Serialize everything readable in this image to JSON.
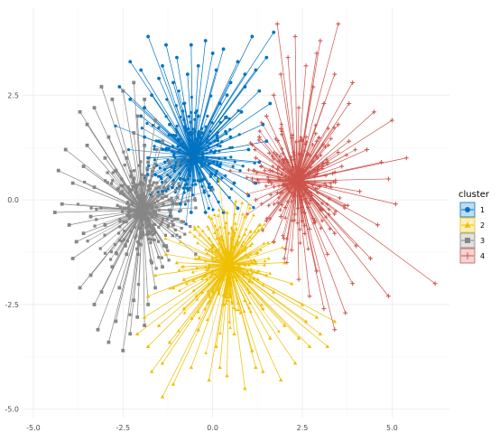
{
  "chart_data": {
    "type": "scatter",
    "title": "",
    "xlabel": "",
    "ylabel": "",
    "xlim": [
      -5.3,
      6.6
    ],
    "ylim": [
      -5.2,
      4.6
    ],
    "x_ticks": [
      -5.0,
      -2.5,
      0.0,
      2.5,
      5.0
    ],
    "x_tick_labels": [
      "-5.0",
      "-2.5",
      "0.0",
      "2.5",
      "5.0"
    ],
    "y_ticks": [
      -5.0,
      -2.5,
      0.0,
      2.5
    ],
    "y_tick_labels": [
      "-5.0",
      "-2.5",
      "0.0",
      "2.5"
    ],
    "grid": true,
    "legend": {
      "title": "cluster",
      "position": "right"
    },
    "series": [
      {
        "name": "1",
        "color": "#0073C2",
        "marker": "circle",
        "centroid": [
          -0.55,
          1.05
        ],
        "points": [
          [
            -1.8,
            3.9
          ],
          [
            -1.3,
            3.7
          ],
          [
            -2.3,
            3.3
          ],
          [
            -2.0,
            3.1
          ],
          [
            -1.5,
            2.9
          ],
          [
            -1.0,
            3.4
          ],
          [
            -0.6,
            3.7
          ],
          [
            -0.2,
            3.8
          ],
          [
            0.3,
            3.6
          ],
          [
            0.7,
            3.3
          ],
          [
            1.1,
            3.9
          ],
          [
            1.7,
            4.0
          ],
          [
            1.5,
            3.4
          ],
          [
            0.9,
            3.0
          ],
          [
            1.3,
            2.6
          ],
          [
            1.6,
            2.3
          ],
          [
            1.4,
            1.8
          ],
          [
            1.5,
            1.4
          ],
          [
            1.3,
            0.9
          ],
          [
            1.2,
            0.4
          ],
          [
            1.0,
            0.1
          ],
          [
            0.7,
            -0.2
          ],
          [
            0.3,
            -0.3
          ],
          [
            -0.2,
            -0.3
          ],
          [
            -0.6,
            -0.3
          ],
          [
            -0.9,
            -0.1
          ],
          [
            -1.4,
            0.2
          ],
          [
            -1.6,
            0.6
          ],
          [
            -1.8,
            1.0
          ],
          [
            -1.9,
            1.5
          ],
          [
            -2.0,
            2.0
          ],
          [
            -2.3,
            2.4
          ],
          [
            -2.6,
            2.7
          ],
          [
            -1.7,
            2.5
          ],
          [
            -1.1,
            2.8
          ],
          [
            -0.4,
            3.2
          ],
          [
            0.1,
            3.1
          ],
          [
            0.5,
            2.8
          ],
          [
            -0.8,
            2.3
          ],
          [
            0.2,
            2.3
          ],
          [
            0.8,
            2.1
          ],
          [
            -1.2,
            1.8
          ],
          [
            -0.3,
            1.6
          ],
          [
            0.5,
            1.5
          ],
          [
            1.0,
            1.2
          ],
          [
            -1.3,
            1.2
          ],
          [
            -0.6,
            0.9
          ],
          [
            0.2,
            0.8
          ],
          [
            0.6,
            0.4
          ],
          [
            -0.9,
            0.5
          ],
          [
            -0.1,
            0.3
          ],
          [
            -0.4,
            2.0
          ],
          [
            0.4,
            2.5
          ],
          [
            -1.5,
            1.4
          ],
          [
            0.9,
            2.7
          ],
          [
            -1.9,
            2.2
          ],
          [
            1.2,
            3.1
          ],
          [
            -0.7,
            3.0
          ],
          [
            -1.4,
            3.2
          ],
          [
            0.0,
            3.5
          ]
        ]
      },
      {
        "name": "2",
        "color": "#EFC000",
        "marker": "triangle",
        "centroid": [
          0.45,
          -1.55
        ],
        "points": [
          [
            -1.7,
            -4.1
          ],
          [
            -1.4,
            -4.7
          ],
          [
            -1.1,
            -4.4
          ],
          [
            -0.6,
            -4.0
          ],
          [
            -0.1,
            -4.3
          ],
          [
            0.4,
            -4.2
          ],
          [
            0.9,
            -4.5
          ],
          [
            1.4,
            -4.1
          ],
          [
            1.9,
            -4.3
          ],
          [
            2.3,
            -3.9
          ],
          [
            2.7,
            -3.5
          ],
          [
            3.0,
            -3.2
          ],
          [
            3.2,
            -3.5
          ],
          [
            2.9,
            -2.8
          ],
          [
            3.4,
            -2.9
          ],
          [
            2.5,
            -2.5
          ],
          [
            2.2,
            -2.0
          ],
          [
            2.0,
            -1.5
          ],
          [
            1.7,
            -1.0
          ],
          [
            1.3,
            -0.6
          ],
          [
            0.9,
            -0.4
          ],
          [
            0.4,
            -0.3
          ],
          [
            -0.1,
            -0.4
          ],
          [
            -0.5,
            -0.7
          ],
          [
            -0.9,
            -1.0
          ],
          [
            -1.3,
            -1.3
          ],
          [
            -1.6,
            -1.8
          ],
          [
            -1.8,
            -2.3
          ],
          [
            -1.9,
            -2.8
          ],
          [
            -2.1,
            -3.2
          ],
          [
            -1.8,
            -3.5
          ],
          [
            -1.5,
            -3.0
          ],
          [
            -1.2,
            -3.4
          ],
          [
            -0.8,
            -2.6
          ],
          [
            -0.4,
            -3.1
          ],
          [
            0.1,
            -3.5
          ],
          [
            0.6,
            -3.2
          ],
          [
            1.1,
            -3.6
          ],
          [
            1.6,
            -3.3
          ],
          [
            2.0,
            -3.0
          ],
          [
            1.4,
            -2.6
          ],
          [
            0.9,
            -2.4
          ],
          [
            0.3,
            -2.5
          ],
          [
            -0.3,
            -2.2
          ],
          [
            -0.8,
            -1.9
          ],
          [
            -1.1,
            -2.1
          ],
          [
            1.7,
            -2.2
          ],
          [
            0.7,
            -1.0
          ],
          [
            0.1,
            -1.2
          ],
          [
            -0.4,
            -1.4
          ],
          [
            1.1,
            -1.5
          ],
          [
            1.5,
            -1.8
          ],
          [
            -1.0,
            -1.5
          ],
          [
            0.5,
            -2.0
          ],
          [
            -0.2,
            -1.8
          ],
          [
            2.4,
            -3.3
          ],
          [
            -1.4,
            -3.9
          ],
          [
            0.2,
            -4.0
          ],
          [
            1.2,
            -4.0
          ],
          [
            2.6,
            -2.9
          ]
        ]
      },
      {
        "name": "3",
        "color": "#868686",
        "marker": "square",
        "centroid": [
          -1.95,
          -0.25
        ],
        "points": [
          [
            -4.2,
            -0.1
          ],
          [
            -4.0,
            -0.6
          ],
          [
            -3.9,
            0.4
          ],
          [
            -3.9,
            -1.4
          ],
          [
            -3.8,
            -1.0
          ],
          [
            -3.6,
            0.8
          ],
          [
            -3.5,
            1.3
          ],
          [
            -3.4,
            -1.8
          ],
          [
            -3.3,
            -2.5
          ],
          [
            -3.2,
            -3.1
          ],
          [
            -3.1,
            -2.2
          ],
          [
            -2.9,
            -3.4
          ],
          [
            -2.7,
            -2.9
          ],
          [
            -2.5,
            -3.6
          ],
          [
            -2.3,
            -3.2
          ],
          [
            -2.1,
            -2.8
          ],
          [
            -1.9,
            -3.0
          ],
          [
            -1.8,
            -2.5
          ],
          [
            -1.6,
            -2.1
          ],
          [
            -1.4,
            -1.6
          ],
          [
            -1.3,
            -1.1
          ],
          [
            -1.1,
            -0.6
          ],
          [
            -1.0,
            -0.1
          ],
          [
            -1.1,
            0.4
          ],
          [
            -1.2,
            0.9
          ],
          [
            -1.4,
            1.4
          ],
          [
            -1.6,
            1.9
          ],
          [
            -1.9,
            2.4
          ],
          [
            -2.2,
            2.8
          ],
          [
            -2.5,
            2.6
          ],
          [
            -2.8,
            2.4
          ],
          [
            -3.1,
            2.7
          ],
          [
            -3.3,
            2.2
          ],
          [
            -3.5,
            1.8
          ],
          [
            -3.7,
            2.1
          ],
          [
            -4.3,
            0.7
          ],
          [
            -4.1,
            1.2
          ],
          [
            -3.7,
            -2.1
          ],
          [
            -3.3,
            0.3
          ],
          [
            -3.0,
            -0.6
          ],
          [
            -2.7,
            0.7
          ],
          [
            -2.4,
            -1.3
          ],
          [
            -2.2,
            1.6
          ],
          [
            -2.0,
            -0.9
          ],
          [
            -1.8,
            0.9
          ],
          [
            -1.6,
            -0.3
          ],
          [
            -2.9,
            1.5
          ],
          [
            -2.6,
            -2.1
          ],
          [
            -2.3,
            0.2
          ],
          [
            -2.1,
            2.0
          ],
          [
            -1.5,
            0.3
          ],
          [
            -3.4,
            -0.4
          ],
          [
            -2.8,
            -1.6
          ],
          [
            -1.7,
            -1.5
          ],
          [
            -2.4,
            1.0
          ],
          [
            -3.0,
            1.0
          ],
          [
            -4.4,
            -0.3
          ],
          [
            -3.6,
            -0.8
          ],
          [
            -2.2,
            -2.4
          ],
          [
            -1.9,
            1.3
          ]
        ]
      },
      {
        "name": "4",
        "color": "#CD534C",
        "marker": "plus",
        "centroid": [
          2.35,
          0.45
        ],
        "points": [
          [
            1.8,
            4.2
          ],
          [
            2.3,
            3.9
          ],
          [
            3.5,
            4.2
          ],
          [
            2.9,
            3.5
          ],
          [
            3.4,
            3.0
          ],
          [
            3.9,
            2.8
          ],
          [
            4.5,
            2.1
          ],
          [
            5.0,
            1.9
          ],
          [
            4.3,
            1.2
          ],
          [
            5.4,
            1.0
          ],
          [
            4.9,
            0.5
          ],
          [
            4.1,
            0.2
          ],
          [
            5.1,
            -0.1
          ],
          [
            6.2,
            -2.0
          ],
          [
            4.6,
            -0.6
          ],
          [
            4.4,
            -1.4
          ],
          [
            4.9,
            -2.3
          ],
          [
            3.9,
            -2.0
          ],
          [
            3.7,
            -2.7
          ],
          [
            3.4,
            -3.1
          ],
          [
            3.1,
            -2.6
          ],
          [
            2.7,
            -2.3
          ],
          [
            2.4,
            -1.9
          ],
          [
            2.0,
            -1.4
          ],
          [
            1.7,
            -1.0
          ],
          [
            1.5,
            -0.5
          ],
          [
            1.2,
            0.0
          ],
          [
            1.1,
            0.5
          ],
          [
            1.2,
            1.0
          ],
          [
            1.3,
            1.5
          ],
          [
            1.5,
            2.0
          ],
          [
            1.7,
            2.5
          ],
          [
            1.9,
            3.0
          ],
          [
            2.1,
            3.4
          ],
          [
            2.6,
            3.2
          ],
          [
            2.8,
            2.7
          ],
          [
            3.1,
            2.3
          ],
          [
            3.5,
            1.8
          ],
          [
            3.8,
            1.4
          ],
          [
            3.6,
            0.8
          ],
          [
            3.3,
            0.3
          ],
          [
            3.0,
            -0.2
          ],
          [
            2.7,
            -0.7
          ],
          [
            3.2,
            -1.3
          ],
          [
            2.9,
            -1.7
          ],
          [
            2.2,
            -1.2
          ],
          [
            1.9,
            -0.4
          ],
          [
            1.6,
            0.7
          ],
          [
            1.9,
            1.7
          ],
          [
            2.4,
            2.2
          ],
          [
            2.9,
            1.4
          ],
          [
            3.2,
            0.9
          ],
          [
            2.5,
            -0.3
          ],
          [
            2.1,
            0.9
          ],
          [
            4.0,
            -1.1
          ],
          [
            4.7,
            0.9
          ],
          [
            3.8,
            2.3
          ],
          [
            2.6,
            1.5
          ],
          [
            3.4,
            -0.8
          ],
          [
            3.0,
            3.8
          ]
        ]
      }
    ]
  }
}
